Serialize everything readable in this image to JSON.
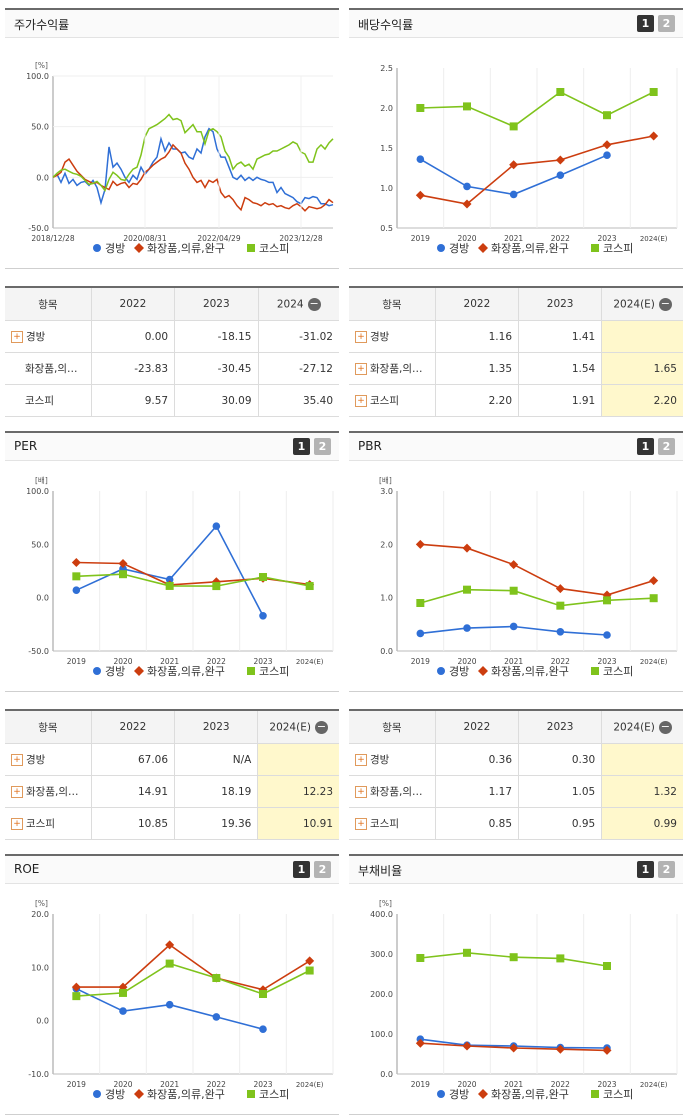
{
  "colors": {
    "kyungbang": "#2f6fd6",
    "cosmetics": "#cc3d0f",
    "kospi": "#7fc31c"
  },
  "legend": [
    "경방",
    "화장품,의류,완구",
    "코스피"
  ],
  "buttons": [
    "1",
    "2"
  ],
  "table_headers": {
    "stock": [
      "항목",
      "2022",
      "2023",
      "2024"
    ],
    "dividend": [
      "항목",
      "2022",
      "2023",
      "2024(E)"
    ],
    "per": [
      "항목",
      "2022",
      "2023",
      "2024(E)"
    ],
    "pbr": [
      "항목",
      "2022",
      "2023",
      "2024(E)"
    ]
  },
  "tables": {
    "stock": [
      [
        "경방",
        "0.00",
        "-18.15",
        "-31.02"
      ],
      [
        "화장품,의…",
        "-23.83",
        "-30.45",
        "-27.12"
      ],
      [
        "코스피",
        "9.57",
        "30.09",
        "35.40"
      ]
    ],
    "dividend": [
      [
        "경방",
        "1.16",
        "1.41",
        ""
      ],
      [
        "화장품,의…",
        "1.35",
        "1.54",
        "1.65"
      ],
      [
        "코스피",
        "2.20",
        "1.91",
        "2.20"
      ]
    ],
    "per": [
      [
        "경방",
        "67.06",
        "N/A",
        ""
      ],
      [
        "화장품,의…",
        "14.91",
        "18.19",
        "12.23"
      ],
      [
        "코스피",
        "10.85",
        "19.36",
        "10.91"
      ]
    ],
    "pbr": [
      [
        "경방",
        "0.36",
        "0.30",
        ""
      ],
      [
        "화장품,의…",
        "1.17",
        "1.05",
        "1.32"
      ],
      [
        "코스피",
        "0.85",
        "0.95",
        "0.99"
      ]
    ]
  },
  "chart_data": [
    {
      "id": "stock",
      "title": "주가수익률",
      "type": "line",
      "unit": "[%]",
      "yticks": [
        "100.0",
        "50.0",
        "0.0",
        "-50.0"
      ],
      "ylim": [
        -50,
        100
      ],
      "xticks": [
        "2018/12/28",
        "2020/08/31",
        "2022/04/29",
        "2023/12/28"
      ],
      "series": [
        {
          "name": "경방",
          "values": [
            0,
            3,
            -5,
            4,
            -6,
            -2,
            -8,
            -5,
            -4,
            -8,
            -3,
            -10,
            -25,
            -12,
            30,
            10,
            14,
            8,
            0,
            -5,
            2,
            -2,
            10,
            3,
            8,
            15,
            20,
            38,
            26,
            34,
            28,
            28,
            24,
            25,
            20,
            18,
            28,
            24,
            40,
            48,
            45,
            28,
            20,
            20,
            10,
            0,
            -2,
            2,
            -3,
            0,
            -3,
            0,
            -2,
            -3,
            -5,
            -5,
            -15,
            -10,
            -16,
            -18,
            -20,
            -24,
            -26,
            -20,
            -21,
            -19,
            -20,
            -26,
            -26,
            -28,
            -27
          ]
        },
        {
          "name": "화장품,의류,완구",
          "values": [
            0,
            2,
            5,
            15,
            18,
            12,
            6,
            2,
            -2,
            -4,
            -6,
            -5,
            -8,
            -10,
            -12,
            -4,
            -8,
            -6,
            -5,
            -10,
            -6,
            -7,
            -2,
            5,
            8,
            12,
            15,
            18,
            20,
            25,
            32,
            28,
            24,
            14,
            8,
            0,
            -5,
            -3,
            -10,
            -3,
            -5,
            -2,
            -15,
            -20,
            -18,
            -22,
            -28,
            -32,
            -20,
            -22,
            -25,
            -26,
            -28,
            -25,
            -27,
            -26,
            -29,
            -28,
            -30,
            -31,
            -28,
            -26,
            -29,
            -33,
            -29,
            -30,
            -31,
            -30,
            -27,
            -22,
            -25
          ]
        },
        {
          "name": "코스피",
          "values": [
            0,
            4,
            7,
            8,
            6,
            4,
            3,
            1,
            -3,
            -7,
            -6,
            -4,
            -8,
            -13,
            -2,
            5,
            2,
            -2,
            -3,
            3,
            8,
            10,
            22,
            40,
            48,
            50,
            52,
            55,
            58,
            62,
            57,
            58,
            56,
            44,
            48,
            52,
            45,
            45,
            33,
            46,
            48,
            45,
            40,
            26,
            20,
            8,
            13,
            15,
            11,
            13,
            8,
            18,
            20,
            22,
            23,
            26,
            26,
            28,
            30,
            32,
            35,
            33,
            25,
            23,
            15,
            15,
            28,
            32,
            28,
            34,
            38
          ]
        }
      ]
    },
    {
      "id": "dividend",
      "title": "배당수익률",
      "type": "line",
      "unit": "",
      "yticks": [
        "2.5",
        "2.0",
        "1.5",
        "1.0",
        "0.5"
      ],
      "ylim": [
        0.5,
        2.5
      ],
      "categories": [
        "2019",
        "2020",
        "2021",
        "2022",
        "2023",
        "2024(E)"
      ],
      "series": [
        {
          "name": "경방",
          "values": [
            1.36,
            1.02,
            0.92,
            1.16,
            1.41,
            null
          ]
        },
        {
          "name": "화장품,의류,완구",
          "values": [
            0.91,
            0.8,
            1.29,
            1.35,
            1.54,
            1.65
          ]
        },
        {
          "name": "코스피",
          "values": [
            2.0,
            2.02,
            1.77,
            2.2,
            1.91,
            2.2
          ]
        }
      ]
    },
    {
      "id": "per",
      "title": "PER",
      "type": "line",
      "unit": "[배]",
      "yticks": [
        "100.0",
        "50.0",
        "0.0",
        "-50.0"
      ],
      "ylim": [
        -50,
        100
      ],
      "categories": [
        "2019",
        "2020",
        "2021",
        "2022",
        "2023",
        "2024(E)"
      ],
      "series": [
        {
          "name": "경방",
          "values": [
            7,
            27,
            17,
            67.06,
            -17,
            null
          ]
        },
        {
          "name": "화장품,의류,완구",
          "values": [
            33,
            32,
            12,
            14.91,
            18.19,
            12.23
          ]
        },
        {
          "name": "코스피",
          "values": [
            20,
            22,
            11,
            10.85,
            19.36,
            10.91
          ]
        }
      ]
    },
    {
      "id": "pbr",
      "title": "PBR",
      "type": "line",
      "unit": "[배]",
      "yticks": [
        "3.0",
        "2.0",
        "1.0",
        "0.0"
      ],
      "ylim": [
        0,
        3
      ],
      "categories": [
        "2019",
        "2020",
        "2021",
        "2022",
        "2023",
        "2024(E)"
      ],
      "series": [
        {
          "name": "경방",
          "values": [
            0.33,
            0.43,
            0.46,
            0.36,
            0.3,
            null
          ]
        },
        {
          "name": "화장품,의류,완구",
          "values": [
            2.0,
            1.93,
            1.62,
            1.17,
            1.05,
            1.32
          ]
        },
        {
          "name": "코스피",
          "values": [
            0.9,
            1.15,
            1.13,
            0.85,
            0.95,
            0.99
          ]
        }
      ]
    },
    {
      "id": "roe",
      "title": "ROE",
      "type": "line",
      "unit": "[%]",
      "yticks": [
        "20.0",
        "10.0",
        "0.0",
        "-10.0"
      ],
      "ylim": [
        -10,
        20
      ],
      "categories": [
        "2019",
        "2020",
        "2021",
        "2022",
        "2023",
        "2024(E)"
      ],
      "series": [
        {
          "name": "경방",
          "values": [
            6,
            1.8,
            3,
            0.7,
            -1.6,
            null
          ]
        },
        {
          "name": "화장품,의류,완구",
          "values": [
            6.3,
            6.3,
            14.2,
            8,
            5.8,
            11.2
          ]
        },
        {
          "name": "코스피",
          "values": [
            4.6,
            5.2,
            10.7,
            8,
            5,
            9.4
          ]
        }
      ]
    },
    {
      "id": "debt",
      "title": "부채비율",
      "type": "line",
      "unit": "[%]",
      "yticks": [
        "400.0",
        "300.0",
        "200.0",
        "100.0",
        "0.0"
      ],
      "ylim": [
        0,
        400
      ],
      "categories": [
        "2019",
        "2020",
        "2021",
        "2022",
        "2023",
        "2024(E)"
      ],
      "series": [
        {
          "name": "경방",
          "values": [
            87,
            72,
            70,
            66,
            65,
            null
          ]
        },
        {
          "name": "화장품,의류,완구",
          "values": [
            77,
            70,
            65,
            62,
            59,
            null
          ]
        },
        {
          "name": "코스피",
          "values": [
            290,
            303,
            292,
            289,
            270,
            null
          ]
        }
      ]
    }
  ]
}
